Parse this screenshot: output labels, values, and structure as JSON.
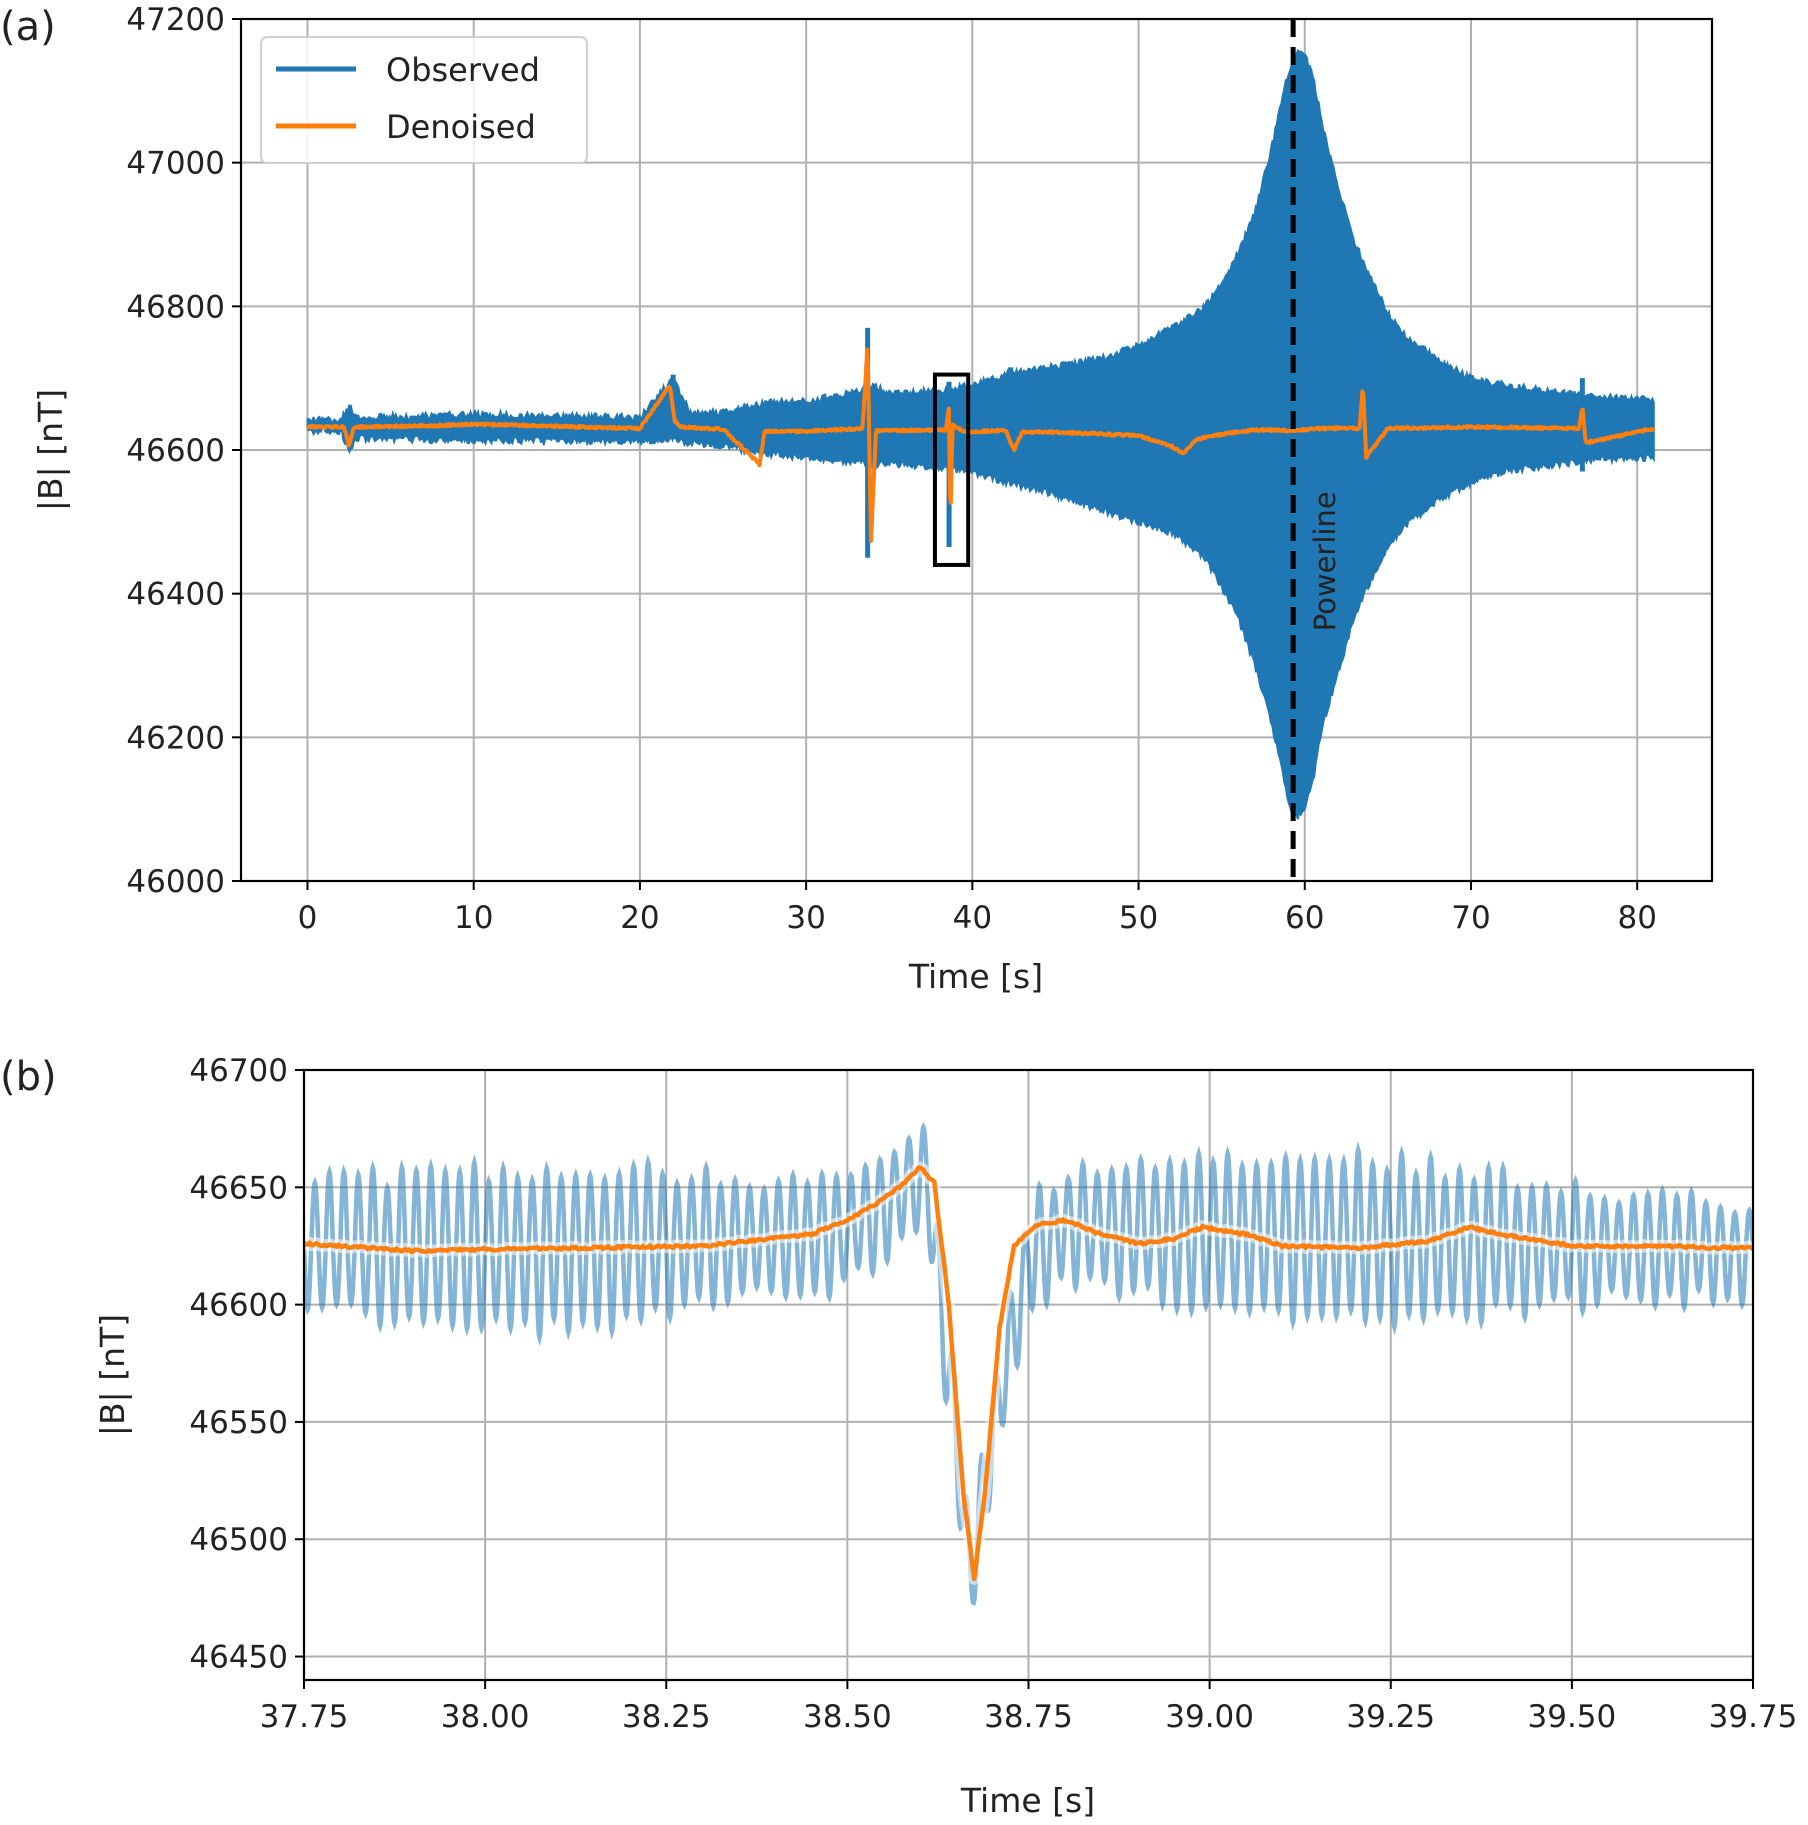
{
  "chart_data": [
    {
      "panel_label": "(a)",
      "type": "line",
      "xlabel": "Time [s]",
      "ylabel": "|B| [nT]",
      "xlim": [
        -4,
        84.5
      ],
      "ylim": [
        46000,
        47200
      ],
      "xticks": [
        0,
        10,
        20,
        30,
        40,
        50,
        60,
        70,
        80
      ],
      "xtick_labels": [
        "0",
        "10",
        "20",
        "30",
        "40",
        "50",
        "60",
        "70",
        "80"
      ],
      "yticks": [
        46000,
        46200,
        46400,
        46600,
        46800,
        47000,
        47200
      ],
      "ytick_labels": [
        "46000",
        "46200",
        "46400",
        "46600",
        "46800",
        "47000",
        "47200"
      ],
      "grid": true,
      "legend": {
        "position": "top-left",
        "entries": [
          "Observed",
          "Denoised"
        ]
      },
      "colors": {
        "observed": "#1f77b4",
        "denoised": "#ff7f0e",
        "powerline": "#000000",
        "box": "#000000"
      },
      "series": [
        {
          "name": "Observed",
          "style": "envelope",
          "x": [
            0,
            2,
            2.5,
            3,
            8,
            10,
            20,
            22,
            23,
            25,
            27.5,
            30,
            33,
            34,
            35,
            38,
            40,
            42,
            44,
            46,
            48,
            50,
            52,
            54,
            55,
            56,
            57,
            58,
            58.5,
            59,
            59.3,
            59.6,
            60,
            60.5,
            61,
            62,
            63,
            64,
            65,
            66,
            68,
            70,
            72,
            75,
            78,
            81
          ],
          "upper": [
            46641,
            46641,
            46660,
            46645,
            46648,
            46649,
            46645,
            46700,
            46652,
            46653,
            46665,
            46668,
            46680,
            46690,
            46678,
            46682,
            46690,
            46705,
            46712,
            46720,
            46730,
            46745,
            46770,
            46800,
            46830,
            46875,
            46930,
            47020,
            47075,
            47125,
            47145,
            47155,
            47150,
            47120,
            47060,
            46965,
            46890,
            46838,
            46790,
            46760,
            46725,
            46700,
            46690,
            46680,
            46673,
            46670
          ],
          "lower": [
            46627,
            46627,
            46595,
            46617,
            46614,
            46614,
            46612,
            46615,
            46610,
            46605,
            46595,
            46590,
            46584,
            46578,
            46582,
            46576,
            46570,
            46555,
            46545,
            46530,
            46515,
            46500,
            46485,
            46450,
            46410,
            46365,
            46300,
            46220,
            46170,
            46110,
            46095,
            46090,
            46100,
            46140,
            46210,
            46290,
            46370,
            46420,
            46465,
            46495,
            46530,
            46555,
            46570,
            46580,
            46588,
            46590
          ]
        },
        {
          "name": "Denoised",
          "x": [
            0,
            2.2,
            2.5,
            2.8,
            8,
            10,
            20,
            21.8,
            22.1,
            22.5,
            25,
            27.2,
            27.5,
            30,
            33.4,
            33.7,
            33.9,
            34.2,
            35,
            38.4,
            38.6,
            38.67,
            38.8,
            39.5,
            40,
            42,
            42.5,
            43,
            45,
            50,
            52,
            52.7,
            53.5,
            55,
            57,
            59,
            61,
            63.3,
            63.5,
            63.7,
            65,
            70,
            76.5,
            76.7,
            76.9,
            81
          ],
          "y": [
            46632,
            46632,
            46605,
            46632,
            46634,
            46636,
            46630,
            46690,
            46640,
            46632,
            46629,
            46580,
            46626,
            46626,
            46630,
            46750,
            46470,
            46627,
            46627,
            46628,
            46658,
            46482,
            46636,
            46625,
            46625,
            46628,
            46600,
            46625,
            46625,
            46620,
            46605,
            46595,
            46615,
            46622,
            46628,
            46627,
            46630,
            46630,
            46690,
            46590,
            46630,
            46632,
            46630,
            46660,
            46610,
            46630
          ]
        }
      ],
      "annotations": [
        {
          "type": "vline",
          "x": 59.3,
          "style": "dashed",
          "label": "Powerline"
        },
        {
          "type": "rect",
          "x0": 37.75,
          "x1": 39.75,
          "y0": 46440,
          "y1": 46705
        }
      ]
    },
    {
      "panel_label": "(b)",
      "type": "line",
      "xlabel": "Time [s]",
      "ylabel": "|B| [nT]",
      "xlim": [
        37.75,
        39.75
      ],
      "ylim": [
        46440,
        46700
      ],
      "xticks": [
        37.75,
        38.0,
        38.25,
        38.5,
        38.75,
        39.0,
        39.25,
        39.5,
        39.75
      ],
      "xtick_labels": [
        "37.75",
        "38.00",
        "38.25",
        "38.50",
        "38.75",
        "39.00",
        "39.25",
        "39.50",
        "39.75"
      ],
      "yticks": [
        46450,
        46500,
        46550,
        46600,
        46650,
        46700
      ],
      "ytick_labels": [
        "46450",
        "46500",
        "46550",
        "46600",
        "46650",
        "46700"
      ],
      "grid": true,
      "colors": {
        "observed": "#1f77b4",
        "denoised": "#ff7f0e"
      },
      "series": [
        {
          "name": "Observed",
          "style": "oscillation",
          "frequency_hz": 50,
          "amplitude_nT": 27,
          "x": [
            37.75,
            38.0,
            38.5,
            38.58,
            38.61,
            38.64,
            38.67,
            38.71,
            38.75,
            38.8,
            39.0,
            39.25,
            39.5,
            39.75
          ],
          "center": [
            46625,
            46623,
            46630,
            46650,
            46653,
            46570,
            46485,
            46560,
            46620,
            46634,
            46630,
            46628,
            46625,
            46623
          ]
        },
        {
          "name": "Denoised",
          "x": [
            37.75,
            37.9,
            38.1,
            38.3,
            38.45,
            38.5,
            38.55,
            38.58,
            38.6,
            38.62,
            38.64,
            38.66,
            38.675,
            38.69,
            38.71,
            38.73,
            38.76,
            38.8,
            38.85,
            38.9,
            38.95,
            38.99,
            39.05,
            39.1,
            39.2,
            39.3,
            39.36,
            39.4,
            39.5,
            39.6,
            39.75
          ],
          "y": [
            46626,
            46623,
            46624,
            46625,
            46630,
            46636,
            46645,
            46652,
            46659,
            46652,
            46600,
            46520,
            46483,
            46520,
            46590,
            46625,
            46634,
            46636,
            46630,
            46626,
            46628,
            46633,
            46630,
            46625,
            46624,
            46627,
            46633,
            46630,
            46625,
            46625,
            46624
          ]
        }
      ]
    }
  ]
}
